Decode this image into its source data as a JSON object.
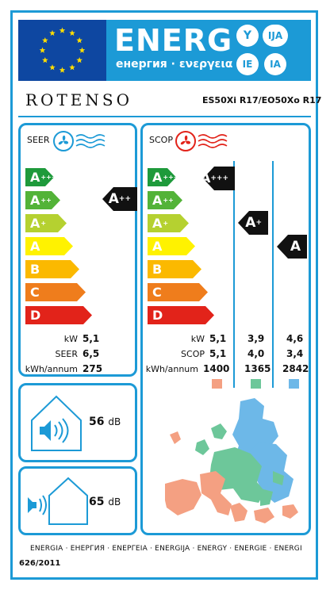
{
  "header": {
    "energ": "ENERG",
    "subtitle": "енергия · ενεργεια",
    "lang_codes": [
      "Y",
      "IJA",
      "IE",
      "IA"
    ]
  },
  "supplier": {
    "brand": "ROTENSO",
    "model": "ES50Xi R17/EO50Xo R17"
  },
  "scale_classes": [
    {
      "letter": "A",
      "plus": "+++",
      "color": "#1e9a3b"
    },
    {
      "letter": "A",
      "plus": "++",
      "color": "#53b338"
    },
    {
      "letter": "A",
      "plus": "+",
      "color": "#b5d130"
    },
    {
      "letter": "A",
      "plus": "",
      "color": "#fff200"
    },
    {
      "letter": "B",
      "plus": "",
      "color": "#fbb900"
    },
    {
      "letter": "C",
      "plus": "",
      "color": "#ef7d1c"
    },
    {
      "letter": "D",
      "plus": "",
      "color": "#e2231a"
    }
  ],
  "seer": {
    "title": "SEER",
    "rating": {
      "letter": "A",
      "plus": "++"
    },
    "rows": [
      {
        "label": "kW",
        "value": "5,1"
      },
      {
        "label": "SEER",
        "value": "6,5"
      },
      {
        "label": "kWh/annum",
        "value": "275"
      }
    ]
  },
  "scop": {
    "title": "SCOP",
    "ratings": [
      {
        "letter": "A",
        "plus": "+++"
      },
      {
        "letter": "A",
        "plus": "+"
      },
      {
        "letter": "A",
        "plus": ""
      }
    ],
    "labels": [
      "kW",
      "SCOP",
      "kWh/annum"
    ],
    "columns": [
      {
        "values": [
          "5,1",
          "5,1",
          "1400"
        ],
        "color": "#f4a082"
      },
      {
        "values": [
          "3,9",
          "4,0",
          "1365"
        ],
        "color": "#6dc79a"
      },
      {
        "values": [
          "4,6",
          "3,4",
          "2842"
        ],
        "color": "#6db8e8"
      }
    ]
  },
  "noise": {
    "indoor": {
      "value": "56",
      "unit": "dB"
    },
    "outdoor": {
      "value": "65",
      "unit": "dB"
    }
  },
  "footer": {
    "languages": "ENERGIA · ЕНЕРГИЯ · ΕΝΕΡΓΕΙΑ · ENERGIJA · ENERGY · ENERGIE · ENERGI",
    "regulation": "626/2011"
  },
  "icons": [
    "eu-flag-icon",
    "fan-icon",
    "speaker-icon",
    "house-icon",
    "europe-map-icon"
  ]
}
